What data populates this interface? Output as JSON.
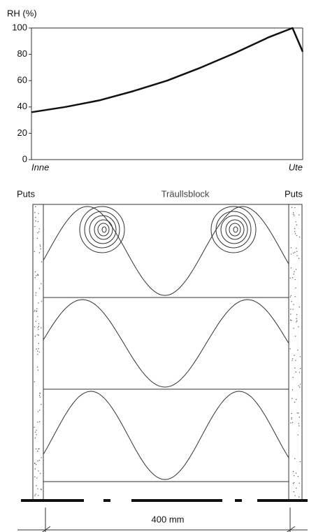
{
  "chart_data": {
    "type": "line",
    "y_label": "RH (%)",
    "x": [
      0,
      50,
      100,
      150,
      200,
      250,
      300,
      350,
      385,
      400
    ],
    "series": [
      {
        "name": null,
        "color": "#111111",
        "values": [
          36,
          40,
          45,
          52,
          60,
          70,
          81,
          93,
          100,
          82
        ]
      }
    ],
    "xlim": [
      0,
      400
    ],
    "xticks": [
      {
        "value": 0,
        "label": "Inne"
      },
      {
        "value": 400,
        "label": "Ute"
      }
    ],
    "ylim": [
      0,
      100
    ],
    "yticks": [
      0,
      20,
      40,
      60,
      80,
      100
    ]
  },
  "diagram": {
    "left_layer": "Puts",
    "core": "Träullsblock",
    "right_layer": "Puts",
    "dimension": "400 mm"
  }
}
